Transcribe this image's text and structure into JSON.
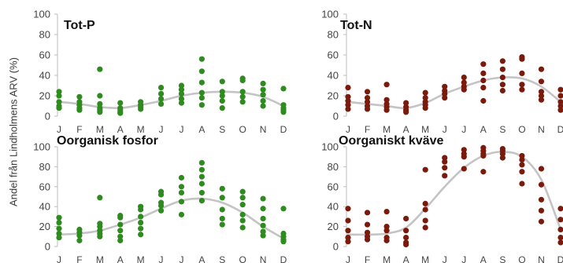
{
  "y_axis_title": "Andel från Lindholmens ARV (%)",
  "chart_data": [
    {
      "type": "scatter",
      "title": "Tot-P",
      "ylim": [
        0,
        100
      ],
      "yticks": [
        0,
        20,
        40,
        60,
        80,
        100
      ],
      "categories": [
        "J",
        "F",
        "M",
        "A",
        "M",
        "J",
        "J",
        "A",
        "S",
        "O",
        "N",
        "D"
      ],
      "grid": false,
      "point_color": "#2e8b1e",
      "trend_color": "#c4c4c4",
      "points": [
        [
          1,
          24
        ],
        [
          1,
          20
        ],
        [
          1,
          14
        ],
        [
          1,
          10
        ],
        [
          1,
          8
        ],
        [
          2,
          19
        ],
        [
          2,
          14
        ],
        [
          2,
          11
        ],
        [
          2,
          8
        ],
        [
          2,
          6
        ],
        [
          3,
          46
        ],
        [
          3,
          20
        ],
        [
          3,
          12
        ],
        [
          3,
          8
        ],
        [
          3,
          6
        ],
        [
          3,
          4
        ],
        [
          4,
          13
        ],
        [
          4,
          8
        ],
        [
          4,
          6
        ],
        [
          4,
          4
        ],
        [
          4,
          3
        ],
        [
          5,
          14
        ],
        [
          5,
          11
        ],
        [
          5,
          9
        ],
        [
          5,
          7
        ],
        [
          6,
          28
        ],
        [
          6,
          22
        ],
        [
          6,
          17
        ],
        [
          6,
          12
        ],
        [
          7,
          30
        ],
        [
          7,
          26
        ],
        [
          7,
          22
        ],
        [
          7,
          17
        ],
        [
          7,
          13
        ],
        [
          8,
          56
        ],
        [
          8,
          44
        ],
        [
          8,
          33
        ],
        [
          8,
          23
        ],
        [
          8,
          18
        ],
        [
          8,
          11
        ],
        [
          9,
          34
        ],
        [
          9,
          24
        ],
        [
          9,
          20
        ],
        [
          9,
          15
        ],
        [
          9,
          8
        ],
        [
          10,
          37
        ],
        [
          10,
          35
        ],
        [
          10,
          24
        ],
        [
          10,
          19
        ],
        [
          10,
          14
        ],
        [
          11,
          32
        ],
        [
          11,
          26
        ],
        [
          11,
          21
        ],
        [
          11,
          15
        ],
        [
          11,
          10
        ],
        [
          12,
          27
        ],
        [
          12,
          11
        ],
        [
          12,
          8
        ],
        [
          12,
          6
        ],
        [
          12,
          4
        ]
      ],
      "trend": [
        [
          1,
          14
        ],
        [
          2,
          12
        ],
        [
          3,
          9
        ],
        [
          4,
          8
        ],
        [
          5,
          11
        ],
        [
          6,
          15
        ],
        [
          7,
          20
        ],
        [
          8,
          23
        ],
        [
          9,
          24
        ],
        [
          10,
          23
        ],
        [
          11,
          19
        ],
        [
          12,
          10
        ]
      ]
    },
    {
      "type": "scatter",
      "title": "Tot-N",
      "ylim": [
        0,
        100
      ],
      "yticks": [
        0,
        20,
        40,
        60,
        80,
        100
      ],
      "categories": [
        "J",
        "F",
        "M",
        "A",
        "M",
        "J",
        "J",
        "A",
        "S",
        "O",
        "N",
        "D"
      ],
      "grid": false,
      "point_color": "#7a1a0d",
      "trend_color": "#c4c4c4",
      "points": [
        [
          1,
          28
        ],
        [
          1,
          19
        ],
        [
          1,
          15
        ],
        [
          1,
          11
        ],
        [
          1,
          7
        ],
        [
          2,
          24
        ],
        [
          2,
          18
        ],
        [
          2,
          14
        ],
        [
          2,
          10
        ],
        [
          2,
          7
        ],
        [
          3,
          31
        ],
        [
          3,
          16
        ],
        [
          3,
          12
        ],
        [
          3,
          9
        ],
        [
          3,
          6
        ],
        [
          4,
          13
        ],
        [
          4,
          9
        ],
        [
          4,
          6
        ],
        [
          4,
          4
        ],
        [
          5,
          23
        ],
        [
          5,
          18
        ],
        [
          5,
          14
        ],
        [
          5,
          11
        ],
        [
          5,
          8
        ],
        [
          6,
          29
        ],
        [
          6,
          25
        ],
        [
          6,
          22
        ],
        [
          6,
          18
        ],
        [
          7,
          38
        ],
        [
          7,
          33
        ],
        [
          7,
          29
        ],
        [
          7,
          26
        ],
        [
          8,
          51
        ],
        [
          8,
          42
        ],
        [
          8,
          35
        ],
        [
          8,
          28
        ],
        [
          8,
          15
        ],
        [
          9,
          54
        ],
        [
          9,
          46
        ],
        [
          9,
          38
        ],
        [
          9,
          31
        ],
        [
          9,
          25
        ],
        [
          10,
          58
        ],
        [
          10,
          56
        ],
        [
          10,
          42
        ],
        [
          10,
          31
        ],
        [
          10,
          26
        ],
        [
          11,
          46
        ],
        [
          11,
          34
        ],
        [
          11,
          24
        ],
        [
          11,
          20
        ],
        [
          11,
          16
        ],
        [
          12,
          26
        ],
        [
          12,
          20
        ],
        [
          12,
          14
        ],
        [
          12,
          10
        ],
        [
          12,
          6
        ]
      ],
      "trend": [
        [
          1,
          14
        ],
        [
          2,
          12
        ],
        [
          3,
          10
        ],
        [
          4,
          8
        ],
        [
          5,
          13
        ],
        [
          6,
          22
        ],
        [
          7,
          29
        ],
        [
          8,
          35
        ],
        [
          9,
          38
        ],
        [
          10,
          37
        ],
        [
          11,
          29
        ],
        [
          12,
          14
        ]
      ]
    },
    {
      "type": "scatter",
      "title": "Oorganisk fosfor",
      "ylim": [
        0,
        100
      ],
      "yticks": [
        0,
        20,
        40,
        60,
        80,
        100
      ],
      "categories": [
        "J",
        "F",
        "M",
        "A",
        "M",
        "J",
        "J",
        "A",
        "S",
        "O",
        "N",
        "D"
      ],
      "grid": false,
      "point_color": "#2e8b1e",
      "trend_color": "#c4c4c4",
      "points": [
        [
          1,
          29
        ],
        [
          1,
          24
        ],
        [
          1,
          18
        ],
        [
          1,
          13
        ],
        [
          1,
          9
        ],
        [
          2,
          17
        ],
        [
          2,
          14
        ],
        [
          2,
          11
        ],
        [
          2,
          6
        ],
        [
          3,
          49
        ],
        [
          3,
          23
        ],
        [
          3,
          20
        ],
        [
          3,
          16
        ],
        [
          3,
          13
        ],
        [
          3,
          10
        ],
        [
          4,
          31
        ],
        [
          4,
          29
        ],
        [
          4,
          22
        ],
        [
          4,
          16
        ],
        [
          4,
          10
        ],
        [
          4,
          6
        ],
        [
          5,
          40
        ],
        [
          5,
          37
        ],
        [
          5,
          30
        ],
        [
          5,
          24
        ],
        [
          5,
          18
        ],
        [
          5,
          12
        ],
        [
          6,
          55
        ],
        [
          6,
          52
        ],
        [
          6,
          44
        ],
        [
          6,
          41
        ],
        [
          6,
          36
        ],
        [
          7,
          69
        ],
        [
          7,
          60
        ],
        [
          7,
          54
        ],
        [
          7,
          45
        ],
        [
          7,
          32
        ],
        [
          8,
          84
        ],
        [
          8,
          77
        ],
        [
          8,
          70
        ],
        [
          8,
          63
        ],
        [
          8,
          54
        ],
        [
          8,
          46
        ],
        [
          9,
          58
        ],
        [
          9,
          49
        ],
        [
          9,
          37
        ],
        [
          9,
          28
        ],
        [
          9,
          22
        ],
        [
          10,
          55
        ],
        [
          10,
          49
        ],
        [
          10,
          42
        ],
        [
          10,
          32
        ],
        [
          10,
          26
        ],
        [
          10,
          19
        ],
        [
          11,
          48
        ],
        [
          11,
          38
        ],
        [
          11,
          28
        ],
        [
          11,
          21
        ],
        [
          11,
          15
        ],
        [
          11,
          11
        ],
        [
          12,
          38
        ],
        [
          12,
          13
        ],
        [
          12,
          10
        ],
        [
          12,
          7
        ],
        [
          12,
          5
        ]
      ],
      "trend": [
        [
          1,
          12
        ],
        [
          2,
          13
        ],
        [
          3,
          16
        ],
        [
          4,
          22
        ],
        [
          5,
          29
        ],
        [
          6,
          38
        ],
        [
          7,
          46
        ],
        [
          8,
          48
        ],
        [
          9,
          44
        ],
        [
          10,
          34
        ],
        [
          11,
          20
        ],
        [
          12,
          8
        ]
      ]
    },
    {
      "type": "scatter",
      "title": "Oorganiskt kväve",
      "ylim": [
        0,
        100
      ],
      "yticks": [
        0,
        20,
        40,
        60,
        80,
        100
      ],
      "categories": [
        "J",
        "F",
        "M",
        "A",
        "M",
        "J",
        "J",
        "A",
        "S",
        "O",
        "N",
        "D"
      ],
      "grid": false,
      "point_color": "#7a1a0d",
      "trend_color": "#c4c4c4",
      "points": [
        [
          1,
          38
        ],
        [
          1,
          26
        ],
        [
          1,
          16
        ],
        [
          1,
          9
        ],
        [
          1,
          5
        ],
        [
          2,
          34
        ],
        [
          2,
          22
        ],
        [
          2,
          14
        ],
        [
          2,
          10
        ],
        [
          2,
          7
        ],
        [
          3,
          35
        ],
        [
          3,
          20
        ],
        [
          3,
          16
        ],
        [
          3,
          9
        ],
        [
          3,
          6
        ],
        [
          4,
          28
        ],
        [
          4,
          16
        ],
        [
          4,
          9
        ],
        [
          4,
          4
        ],
        [
          4,
          2
        ],
        [
          5,
          77
        ],
        [
          5,
          43
        ],
        [
          5,
          37
        ],
        [
          5,
          26
        ],
        [
          5,
          19
        ],
        [
          6,
          89
        ],
        [
          6,
          85
        ],
        [
          6,
          79
        ],
        [
          6,
          71
        ],
        [
          7,
          97
        ],
        [
          7,
          93
        ],
        [
          7,
          90
        ],
        [
          7,
          78
        ],
        [
          8,
          99
        ],
        [
          8,
          96
        ],
        [
          8,
          93
        ],
        [
          8,
          91
        ],
        [
          8,
          75
        ],
        [
          9,
          98
        ],
        [
          9,
          96
        ],
        [
          9,
          93
        ],
        [
          9,
          89
        ],
        [
          10,
          91
        ],
        [
          10,
          87
        ],
        [
          10,
          82
        ],
        [
          10,
          75
        ],
        [
          10,
          63
        ],
        [
          11,
          78
        ],
        [
          11,
          62
        ],
        [
          11,
          47
        ],
        [
          11,
          36
        ],
        [
          11,
          25
        ],
        [
          12,
          38
        ],
        [
          12,
          27
        ],
        [
          12,
          17
        ],
        [
          12,
          9
        ],
        [
          12,
          4
        ]
      ],
      "trend": [
        [
          1,
          12
        ],
        [
          2,
          12
        ],
        [
          3,
          13
        ],
        [
          4,
          19
        ],
        [
          5,
          38
        ],
        [
          6,
          60
        ],
        [
          7,
          79
        ],
        [
          8,
          91
        ],
        [
          9,
          95
        ],
        [
          10,
          90
        ],
        [
          11,
          67
        ],
        [
          12,
          17
        ]
      ]
    }
  ]
}
